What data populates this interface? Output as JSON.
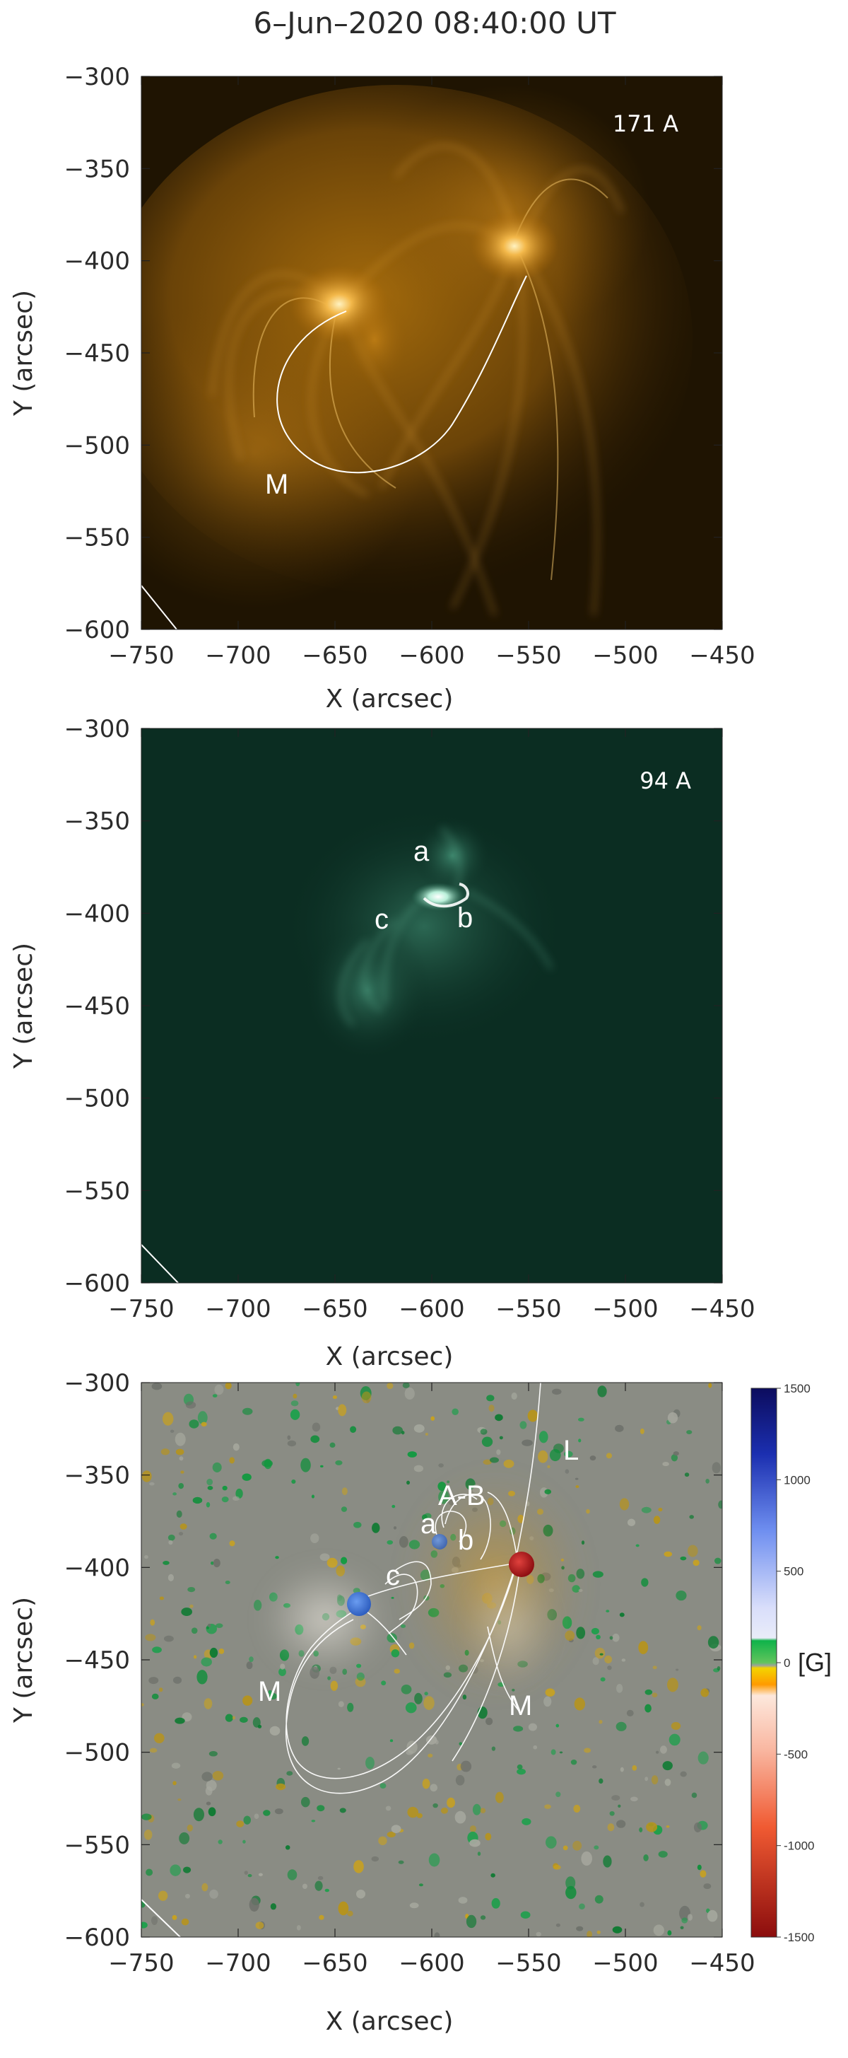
{
  "title": "6–Jun–2020 08:40:00 UT",
  "x_axis_label": "X (arcsec)",
  "y_axis_label": "Y (arcsec)",
  "x_ticks": [
    "−750",
    "−700",
    "−650",
    "−600",
    "−550",
    "−500",
    "−450"
  ],
  "y_ticks": [
    "−300",
    "−350",
    "−400",
    "−450",
    "−500",
    "−550",
    "−600"
  ],
  "panels": [
    {
      "id": "aia-171",
      "wavelength": "171 A",
      "colormap": "SDO/AIA 171 (gold)",
      "labels": {
        "m": "M"
      }
    },
    {
      "id": "aia-94",
      "wavelength": "94 A",
      "colormap": "SDO/AIA 94 (green)",
      "labels": {
        "a": "a",
        "b": "b",
        "c": "c"
      }
    },
    {
      "id": "magnetogram",
      "labels": {
        "l": "L",
        "ab": "A-B",
        "a": "a",
        "b": "b",
        "c": "c",
        "m_left": "M",
        "m_right": "M"
      },
      "colorbar": {
        "ticks": [
          "1500",
          "1000",
          "500",
          "0",
          "-500",
          "-1000",
          "-1500"
        ],
        "unit": "[G]",
        "range": [
          -1500,
          1500
        ]
      }
    }
  ],
  "colors": {
    "panel171_bg": "#1f1402",
    "panel94_bg": "#0b2d22",
    "magnetogram_bg": "#8a8c84",
    "positive_polarity": "#2f6fd6",
    "negative_polarity": "#b8191d"
  }
}
